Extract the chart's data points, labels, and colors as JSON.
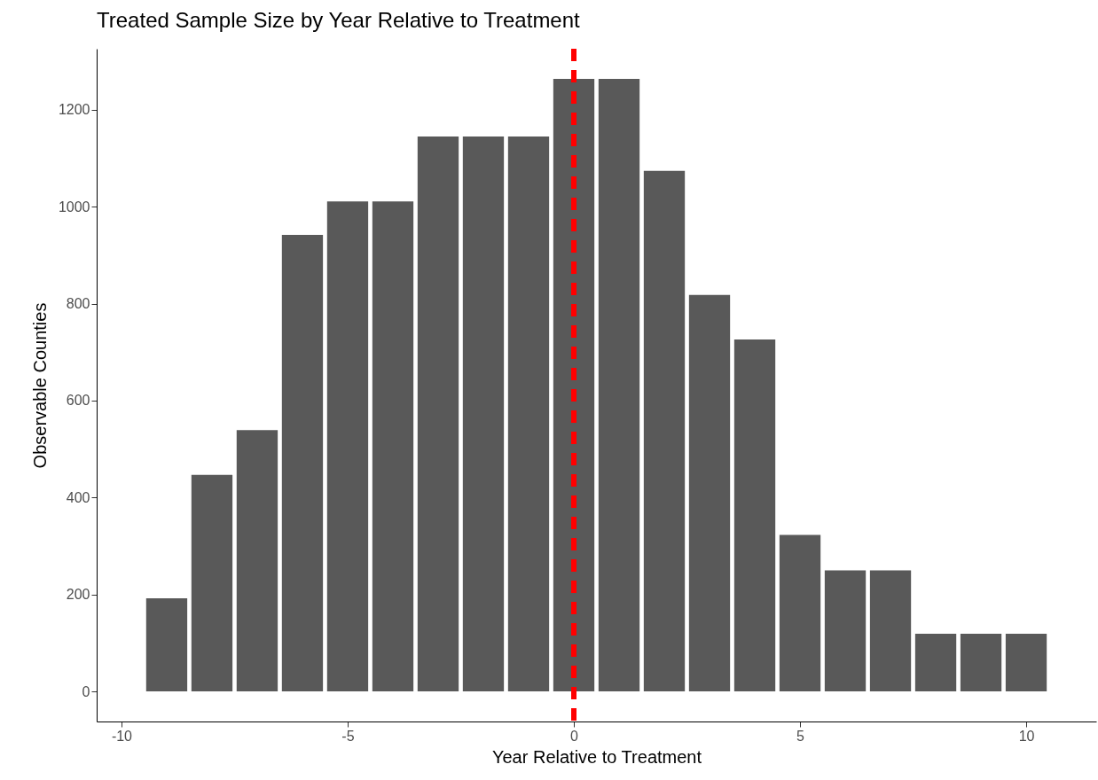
{
  "chart_data": {
    "type": "bar",
    "title": "Treated Sample Size by Year Relative to Treatment",
    "xlabel": "Year Relative to Treatment",
    "ylabel": "Observable Counties",
    "x": [
      -9,
      -8,
      -7,
      -6,
      -5,
      -4,
      -3,
      -2,
      -1,
      0,
      1,
      2,
      3,
      4,
      5,
      6,
      7,
      8,
      9,
      10
    ],
    "values": [
      192,
      447,
      539,
      942,
      1011,
      1011,
      1145,
      1145,
      1145,
      1264,
      1264,
      1074,
      818,
      726,
      323,
      250,
      250,
      119,
      119,
      119
    ],
    "color": "#595959",
    "xlim": [
      -10.45,
      11.45
    ],
    "xticks": [
      -10,
      -5,
      0,
      5,
      10
    ],
    "ylim": [
      -62,
      1326
    ],
    "yticks": [
      0,
      200,
      400,
      600,
      800,
      1000,
      1200
    ],
    "ref_lines": [
      {
        "axis": "x",
        "value": 0,
        "color": "#ff0000",
        "line_style": "dashed"
      }
    ],
    "grid": false
  }
}
